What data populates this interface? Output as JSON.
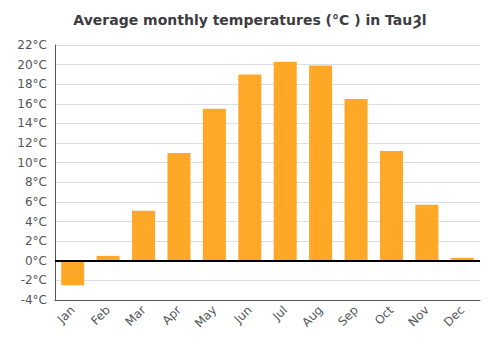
{
  "chart_data": {
    "type": "bar",
    "title": "Average monthly temperatures (°C ) in TauȜl",
    "categories": [
      "Jan",
      "Feb",
      "Mar",
      "Apr",
      "May",
      "Jun",
      "Jul",
      "Aug",
      "Sep",
      "Oct",
      "Nov",
      "Dec"
    ],
    "values": [
      -2.5,
      0.5,
      5.1,
      11.0,
      15.5,
      19.0,
      20.3,
      19.9,
      16.5,
      11.2,
      5.7,
      0.3
    ],
    "color": "#FFA726",
    "ylim": [
      -4,
      22
    ],
    "yticks": [
      {
        "value": -4,
        "label": "-4°C"
      },
      {
        "value": -2,
        "label": "-2°C"
      },
      {
        "value": 0,
        "label": "0°C"
      },
      {
        "value": 2,
        "label": "2°C"
      },
      {
        "value": 4,
        "label": "4°C"
      },
      {
        "value": 6,
        "label": "6°C"
      },
      {
        "value": 8,
        "label": "8°C"
      },
      {
        "value": 10,
        "label": "10°C"
      },
      {
        "value": 12,
        "label": "12°C"
      },
      {
        "value": 14,
        "label": "14°C"
      },
      {
        "value": 16,
        "label": "16°C"
      },
      {
        "value": 18,
        "label": "18°C"
      },
      {
        "value": 20,
        "label": "20°C"
      },
      {
        "value": 22,
        "label": "22°C"
      }
    ],
    "grid": true
  }
}
